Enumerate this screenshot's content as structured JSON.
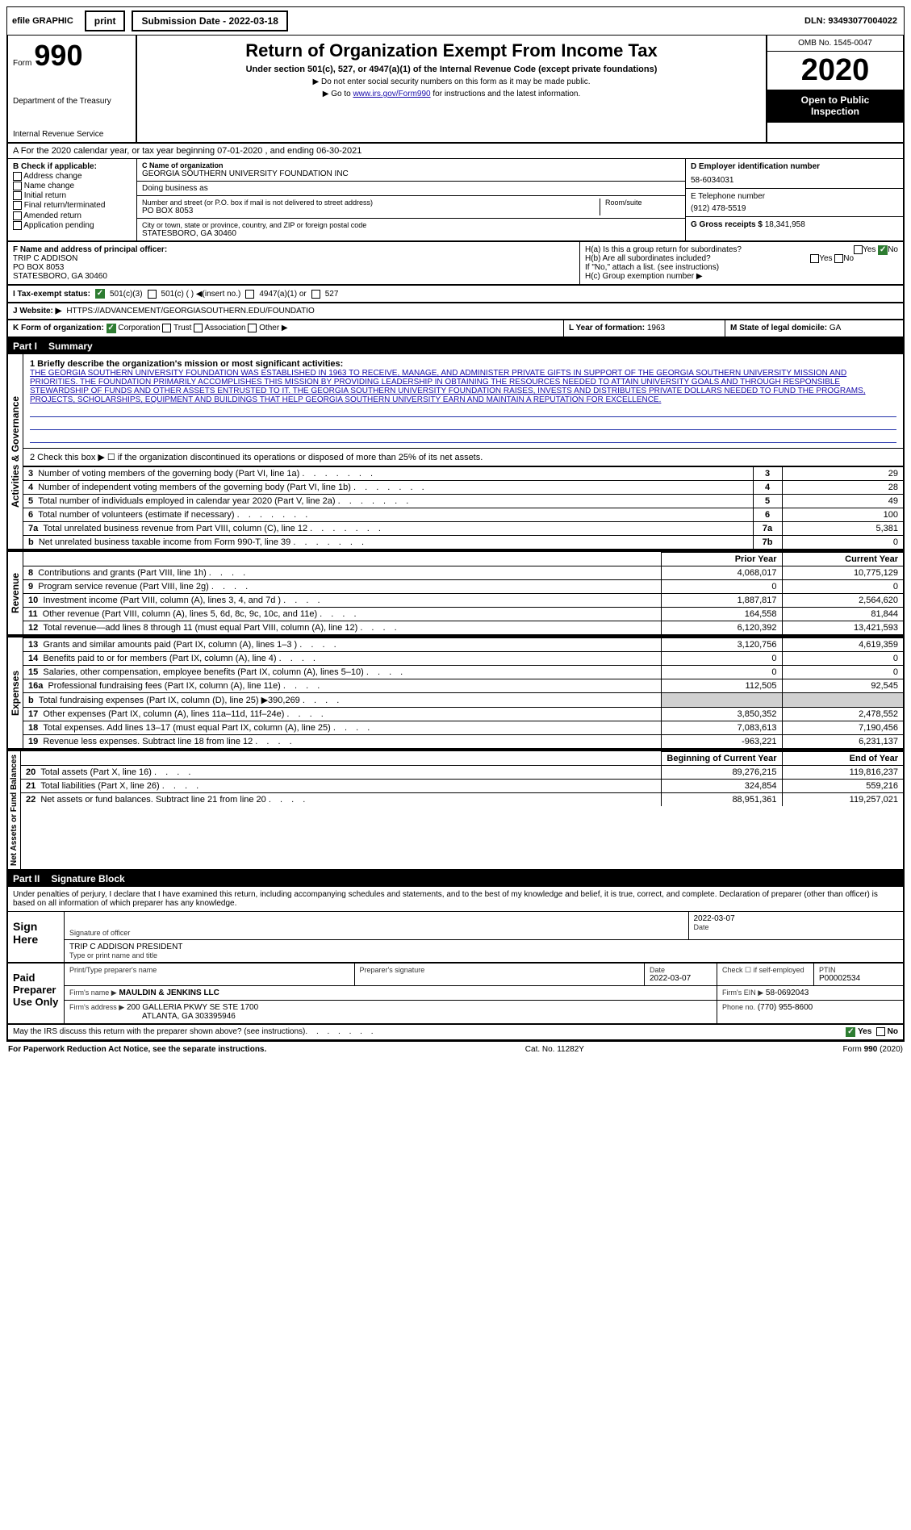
{
  "top": {
    "efile": "efile GRAPHIC",
    "print": "print",
    "submission_label": "Submission Date - 2022-03-18",
    "dln": "DLN: 93493077004022"
  },
  "header": {
    "form_prefix": "Form",
    "form_number": "990",
    "dept1": "Department of the Treasury",
    "dept2": "Internal Revenue Service",
    "title": "Return of Organization Exempt From Income Tax",
    "subtitle": "Under section 501(c), 527, or 4947(a)(1) of the Internal Revenue Code (except private foundations)",
    "note1": "▶ Do not enter social security numbers on this form as it may be made public.",
    "note2_pre": "▶ Go to ",
    "note2_link": "www.irs.gov/Form990",
    "note2_post": " for instructions and the latest information.",
    "omb": "OMB No. 1545-0047",
    "year": "2020",
    "inspection1": "Open to Public",
    "inspection2": "Inspection"
  },
  "A": {
    "line": "A For the 2020 calendar year, or tax year beginning 07-01-2020   , and ending 06-30-2021"
  },
  "B": {
    "label": "B Check if applicable:",
    "items": [
      "Address change",
      "Name change",
      "Initial return",
      "Final return/terminated",
      "Amended return",
      "Application pending"
    ]
  },
  "C": {
    "name_label": "C Name of organization",
    "name": "GEORGIA SOUTHERN UNIVERSITY FOUNDATION INC",
    "dba_label": "Doing business as",
    "street_label": "Number and street (or P.O. box if mail is not delivered to street address)",
    "street": "PO BOX 8053",
    "room_label": "Room/suite",
    "city_label": "City or town, state or province, country, and ZIP or foreign postal code",
    "city": "STATESBORO, GA  30460"
  },
  "D": {
    "label": "D Employer identification number",
    "value": "58-6034031"
  },
  "E": {
    "label": "E Telephone number",
    "value": "(912) 478-5519"
  },
  "G": {
    "label": "G Gross receipts $",
    "value": "18,341,958"
  },
  "F": {
    "label": "F  Name and address of principal officer:",
    "name": "TRIP C ADDISON",
    "addr1": "PO BOX 8053",
    "addr2": "STATESBORO, GA  30460"
  },
  "H": {
    "a": "H(a)  Is this a group return for subordinates?",
    "a_yes": "Yes",
    "a_no": "No",
    "b": "H(b)  Are all subordinates included?",
    "b_yes": "Yes",
    "b_no": "No",
    "b_note": "If \"No,\" attach a list. (see instructions)",
    "c": "H(c)  Group exemption number ▶"
  },
  "I": {
    "label": "I  Tax-exempt status:",
    "opt1": "501(c)(3)",
    "opt2": "501(c) (   ) ◀(insert no.)",
    "opt3": "4947(a)(1) or",
    "opt4": "527"
  },
  "J": {
    "label": "J  Website: ▶",
    "value": "HTTPS://ADVANCEMENT/GEORGIASOUTHERN.EDU/FOUNDATIO"
  },
  "K": {
    "label": "K Form of organization:",
    "corp": "Corporation",
    "trust": "Trust",
    "assoc": "Association",
    "other": "Other ▶"
  },
  "L": {
    "label": "L Year of formation:",
    "value": "1963"
  },
  "M": {
    "label": "M State of legal domicile:",
    "value": "GA"
  },
  "part1": {
    "label": "Part I",
    "title": "Summary"
  },
  "mission": {
    "q1": "1  Briefly describe the organization's mission or most significant activities:",
    "text": "THE GEORGIA SOUTHERN UNIVERSITY FOUNDATION WAS ESTABLISHED IN 1963 TO RECEIVE, MANAGE, AND ADMINISTER PRIVATE GIFTS IN SUPPORT OF THE GEORGIA SOUTHERN UNIVERSITY MISSION AND PRIORITIES. THE FOUNDATION PRIMARILY ACCOMPLISHES THIS MISSION BY PROVIDING LEADERSHIP IN OBTAINING THE RESOURCES NEEDED TO ATTAIN UNIVERSITY GOALS AND THROUGH RESPONSIBLE STEWARDSHIP OF FUNDS AND OTHER ASSETS ENTRUSTED TO IT. THE GEORGIA SOUTHERN UNIVERSITY FOUNDATION RAISES, INVESTS AND DISTRIBUTES PRIVATE DOLLARS NEEDED TO FUND THE PROGRAMS, PROJECTS, SCHOLARSHIPS, EQUIPMENT AND BUILDINGS THAT HELP GEORGIA SOUTHERN UNIVERSITY EARN AND MAINTAIN A REPUTATION FOR EXCELLENCE."
  },
  "lines_gov": {
    "l2": "2  Check this box ▶ ☐ if the organization discontinued its operations or disposed of more than 25% of its net assets.",
    "rows": [
      {
        "n": "3",
        "t": "Number of voting members of the governing body (Part VI, line 1a)",
        "box": "3",
        "v": "29"
      },
      {
        "n": "4",
        "t": "Number of independent voting members of the governing body (Part VI, line 1b)",
        "box": "4",
        "v": "28"
      },
      {
        "n": "5",
        "t": "Total number of individuals employed in calendar year 2020 (Part V, line 2a)",
        "box": "5",
        "v": "49"
      },
      {
        "n": "6",
        "t": "Total number of volunteers (estimate if necessary)",
        "box": "6",
        "v": "100"
      },
      {
        "n": "7a",
        "t": "Total unrelated business revenue from Part VIII, column (C), line 12",
        "box": "7a",
        "v": "5,381"
      },
      {
        "n": "b",
        "t": "Net unrelated business taxable income from Form 990-T, line 39",
        "box": "7b",
        "v": "0"
      }
    ]
  },
  "py_cy": {
    "prior": "Prior Year",
    "current": "Current Year"
  },
  "revenue_rows": [
    {
      "n": "8",
      "t": "Contributions and grants (Part VIII, line 1h)",
      "py": "4,068,017",
      "cy": "10,775,129"
    },
    {
      "n": "9",
      "t": "Program service revenue (Part VIII, line 2g)",
      "py": "0",
      "cy": "0"
    },
    {
      "n": "10",
      "t": "Investment income (Part VIII, column (A), lines 3, 4, and 7d )",
      "py": "1,887,817",
      "cy": "2,564,620"
    },
    {
      "n": "11",
      "t": "Other revenue (Part VIII, column (A), lines 5, 6d, 8c, 9c, 10c, and 11e)",
      "py": "164,558",
      "cy": "81,844"
    },
    {
      "n": "12",
      "t": "Total revenue—add lines 8 through 11 (must equal Part VIII, column (A), line 12)",
      "py": "6,120,392",
      "cy": "13,421,593"
    }
  ],
  "expense_rows": [
    {
      "n": "13",
      "t": "Grants and similar amounts paid (Part IX, column (A), lines 1–3 )",
      "py": "3,120,756",
      "cy": "4,619,359"
    },
    {
      "n": "14",
      "t": "Benefits paid to or for members (Part IX, column (A), line 4)",
      "py": "0",
      "cy": "0"
    },
    {
      "n": "15",
      "t": "Salaries, other compensation, employee benefits (Part IX, column (A), lines 5–10)",
      "py": "0",
      "cy": "0"
    },
    {
      "n": "16a",
      "t": "Professional fundraising fees (Part IX, column (A), line 11e)",
      "py": "112,505",
      "cy": "92,545"
    },
    {
      "n": "b",
      "t": "Total fundraising expenses (Part IX, column (D), line 25) ▶390,269",
      "py": "",
      "cy": "",
      "shaded": true
    },
    {
      "n": "17",
      "t": "Other expenses (Part IX, column (A), lines 11a–11d, 11f–24e)",
      "py": "3,850,352",
      "cy": "2,478,552"
    },
    {
      "n": "18",
      "t": "Total expenses. Add lines 13–17 (must equal Part IX, column (A), line 25)",
      "py": "7,083,613",
      "cy": "7,190,456"
    },
    {
      "n": "19",
      "t": "Revenue less expenses. Subtract line 18 from line 12",
      "py": "-963,221",
      "cy": "6,231,137"
    }
  ],
  "na_hdr": {
    "begin": "Beginning of Current Year",
    "end": "End of Year"
  },
  "na_rows": [
    {
      "n": "20",
      "t": "Total assets (Part X, line 16)",
      "py": "89,276,215",
      "cy": "119,816,237"
    },
    {
      "n": "21",
      "t": "Total liabilities (Part X, line 26)",
      "py": "324,854",
      "cy": "559,216"
    },
    {
      "n": "22",
      "t": "Net assets or fund balances. Subtract line 21 from line 20",
      "py": "88,951,361",
      "cy": "119,257,021"
    }
  ],
  "part2": {
    "label": "Part II",
    "title": "Signature Block"
  },
  "sig": {
    "intro": "Under penalties of perjury, I declare that I have examined this return, including accompanying schedules and statements, and to the best of my knowledge and belief, it is true, correct, and complete. Declaration of preparer (other than officer) is based on all information of which preparer has any knowledge.",
    "sign_here": "Sign Here",
    "sig_officer": "Signature of officer",
    "date_label": "Date",
    "date_val": "2022-03-07",
    "name": "TRIP C ADDISON  PRESIDENT",
    "name_label": "Type or print name and title",
    "paid": "Paid Preparer Use Only",
    "prep_name_label": "Print/Type preparer's name",
    "prep_sig_label": "Preparer's signature",
    "prep_date": "2022-03-07",
    "check_label": "Check ☐ if self-employed",
    "ptin_label": "PTIN",
    "ptin": "P00002534",
    "firm_name_label": "Firm's name   ▶",
    "firm_name": "MAULDIN & JENKINS LLC",
    "firm_ein_label": "Firm's EIN ▶",
    "firm_ein": "58-0692043",
    "firm_addr_label": "Firm's address ▶",
    "firm_addr": "200 GALLERIA PKWY SE STE 1700",
    "firm_addr2": "ATLANTA, GA  303395946",
    "phone_label": "Phone no.",
    "phone": "(770) 955-8600",
    "discuss": "May the IRS discuss this return with the preparer shown above? (see instructions)",
    "yes": "Yes",
    "no": "No"
  },
  "footer": {
    "left": "For Paperwork Reduction Act Notice, see the separate instructions.",
    "mid": "Cat. No. 11282Y",
    "right": "Form 990 (2020)"
  },
  "vlabels": {
    "gov": "Activities & Governance",
    "rev": "Revenue",
    "exp": "Expenses",
    "na": "Net Assets or Fund Balances"
  }
}
